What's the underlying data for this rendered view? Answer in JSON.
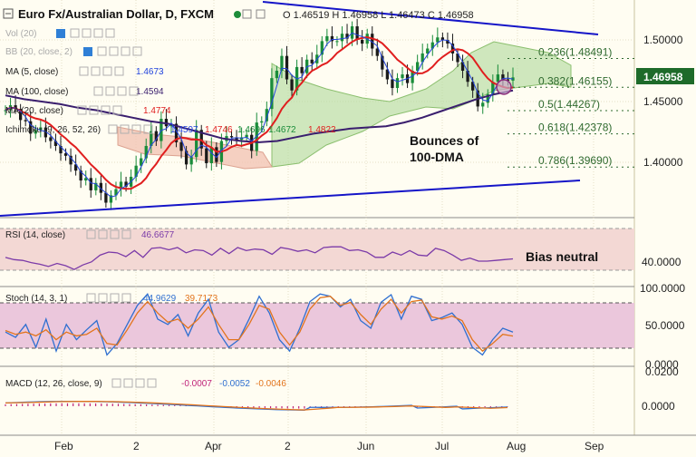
{
  "header": {
    "title": "Euro Fx/Australian Dollar, D, FXCM",
    "ohlc": "O 1.46519 H 1.46958 L 1.46473 C 1.46958"
  },
  "indicators": {
    "vol": "Vol (20)",
    "bb": "BB (20, close, 2)",
    "ma5": {
      "label": "MA (5, close)",
      "value": "1.4673"
    },
    "ma100": {
      "label": "MA (100, close)",
      "value": "1.4594"
    },
    "ma20": {
      "label": "MA (20, close)",
      "value": "1.4774"
    },
    "ichimoku": {
      "label": "Ichimoku (9, 26, 52, 26)",
      "values": [
        "1.4597",
        "1.4746",
        "1.4696",
        "1.4672",
        "1.4822"
      ]
    },
    "rsi": {
      "label": "RSI (14, close)",
      "value": "46.6677"
    },
    "stoch": {
      "label": "Stoch (14, 3, 1)",
      "values": [
        "44.9629",
        "39.7173"
      ]
    },
    "macd": {
      "label": "MACD (12, 26, close, 9)",
      "values": [
        "-0.0007",
        "-0.0052",
        "-0.0046"
      ]
    }
  },
  "annotations": {
    "bounce": [
      "Bounces of",
      "100-DMA"
    ],
    "bias": "Bias neutral"
  },
  "fib_levels": [
    {
      "label": "0.236(1.48491)",
      "value": 1.48491
    },
    {
      "label": "0.382(1.46155)",
      "value": 1.46155
    },
    {
      "label": "0.5(1.44267)",
      "value": 1.44267
    },
    {
      "label": "0.618(1.42378)",
      "value": 1.42378
    },
    {
      "label": "0.786(1.39690)",
      "value": 1.3969
    }
  ],
  "price_axis": {
    "ticks": [
      "1.50000",
      "1.45000",
      "1.40000"
    ],
    "current": "1.46958"
  },
  "rsi_axis": {
    "ticks": [
      "40.0000"
    ]
  },
  "stoch_axis": {
    "ticks": [
      "100.0000",
      "50.0000",
      "0.0000"
    ]
  },
  "macd_axis": {
    "ticks": [
      "0.0200",
      "0.0000"
    ]
  },
  "x_axis": {
    "ticks": [
      "Feb",
      "2",
      "Apr",
      "2",
      "Jun",
      "Jul",
      "Aug",
      "Sep"
    ]
  },
  "colors": {
    "up": "#1a8c3a",
    "down": "#1a1a1a",
    "ma20": "#e01e1e",
    "ma100": "#3a1e6e",
    "ma5": "#2244dd",
    "trend": "#1515c8",
    "cloud": "#9ccf7c"
  },
  "chart_data": {
    "type": "candlestick",
    "instrument": "Euro Fx/Australian Dollar, D, FXCM",
    "price_ylim": [
      1.365,
      1.525
    ],
    "price_closes": [
      1.443,
      1.447,
      1.444,
      1.435,
      1.434,
      1.424,
      1.427,
      1.429,
      1.421,
      1.418,
      1.414,
      1.408,
      1.406,
      1.399,
      1.394,
      1.386,
      1.388,
      1.378,
      1.384,
      1.376,
      1.368,
      1.374,
      1.379,
      1.385,
      1.381,
      1.389,
      1.398,
      1.404,
      1.414,
      1.426,
      1.418,
      1.436,
      1.43,
      1.432,
      1.417,
      1.41,
      1.399,
      1.405,
      1.427,
      1.412,
      1.4,
      1.413,
      1.401,
      1.418,
      1.422,
      1.421,
      1.419,
      1.421,
      1.423,
      1.41,
      1.433,
      1.434,
      1.444,
      1.469,
      1.475,
      1.487,
      1.468,
      1.459,
      1.478,
      1.473,
      1.484,
      1.481,
      1.488,
      1.499,
      1.503,
      1.499,
      1.499,
      1.505,
      1.501,
      1.511,
      1.5,
      1.497,
      1.505,
      1.493,
      1.487,
      1.476,
      1.468,
      1.461,
      1.469,
      1.472,
      1.465,
      1.475,
      1.482,
      1.489,
      1.493,
      1.498,
      1.502,
      1.5,
      1.497,
      1.489,
      1.482,
      1.475,
      1.466,
      1.459,
      1.446,
      1.449,
      1.456,
      1.466,
      1.472,
      1.468,
      1.467,
      1.4696
    ],
    "ma100": [
      1.455,
      1.452,
      1.45,
      1.448,
      1.445,
      1.443,
      1.44,
      1.437,
      1.434,
      1.432,
      1.428,
      1.424,
      1.42,
      1.418,
      1.417,
      1.418,
      1.421,
      1.424,
      1.426,
      1.428,
      1.429,
      1.43,
      1.433,
      1.437,
      1.442,
      1.447,
      1.452,
      1.456,
      1.459
    ],
    "rsi_range": [
      20,
      80
    ],
    "rsi": [
      49,
      46,
      45,
      42,
      40,
      37,
      41,
      38,
      33,
      39,
      43,
      52,
      56,
      55,
      50,
      58,
      49,
      61,
      62,
      59,
      62,
      55,
      59,
      58,
      52,
      61,
      54,
      62,
      58,
      60,
      59,
      53,
      62,
      60,
      57,
      59,
      55,
      62,
      63,
      63,
      58,
      59,
      56,
      49,
      49,
      56,
      52,
      58,
      52,
      51,
      61,
      58,
      52,
      45,
      48,
      44,
      44,
      45,
      46,
      47
    ],
    "stoch_k": [
      45,
      38,
      55,
      25,
      62,
      20,
      55,
      35,
      48,
      60,
      15,
      30,
      55,
      80,
      95,
      62,
      55,
      68,
      40,
      70,
      88,
      45,
      25,
      35,
      62,
      92,
      70,
      35,
      20,
      50,
      85,
      95,
      92,
      78,
      88,
      60,
      50,
      84,
      94,
      62,
      92,
      88,
      60,
      64,
      70,
      55,
      25,
      15,
      35,
      50,
      44.96
    ],
    "stoch_d": [
      47,
      42,
      45,
      40,
      48,
      35,
      45,
      40,
      42,
      50,
      30,
      28,
      48,
      70,
      85,
      70,
      58,
      62,
      50,
      62,
      78,
      55,
      35,
      35,
      55,
      80,
      75,
      45,
      28,
      45,
      75,
      90,
      92,
      80,
      84,
      68,
      55,
      75,
      88,
      70,
      85,
      87,
      65,
      62,
      66,
      60,
      35,
      20,
      30,
      42,
      39.72
    ],
    "macd_range": [
      -0.02,
      0.02
    ]
  }
}
